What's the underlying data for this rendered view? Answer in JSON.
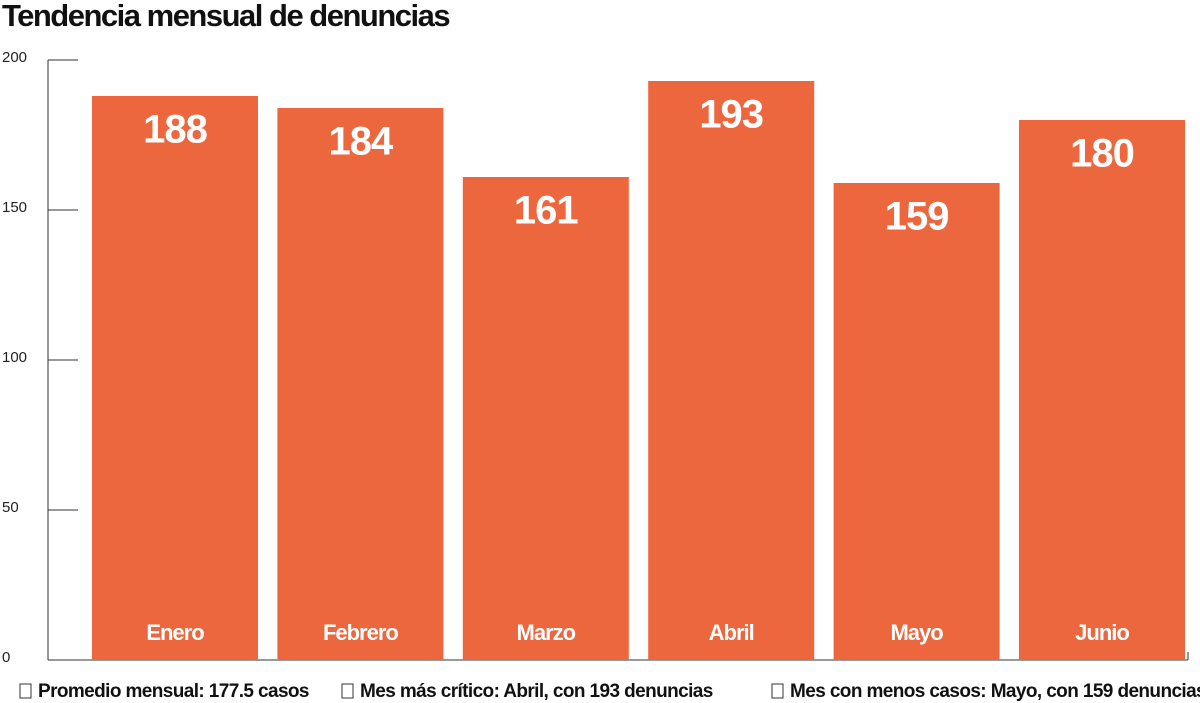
{
  "chart_data": {
    "type": "bar",
    "title": "Tendencia mensual de denuncias",
    "categories": [
      "Enero",
      "Febrero",
      "Marzo",
      "Abril",
      "Mayo",
      "Junio"
    ],
    "values": [
      188,
      184,
      161,
      193,
      159,
      180
    ],
    "color": "#ec673d",
    "ylim": [
      0,
      200
    ],
    "yticks": [
      0,
      50,
      100,
      150,
      200
    ],
    "notes": [
      "Promedio mensual: 177.5 casos",
      "Mes más crítico: Abril, con 193 denuncias",
      "Mes con menos casos: Mayo, con 159 denuncias"
    ]
  }
}
